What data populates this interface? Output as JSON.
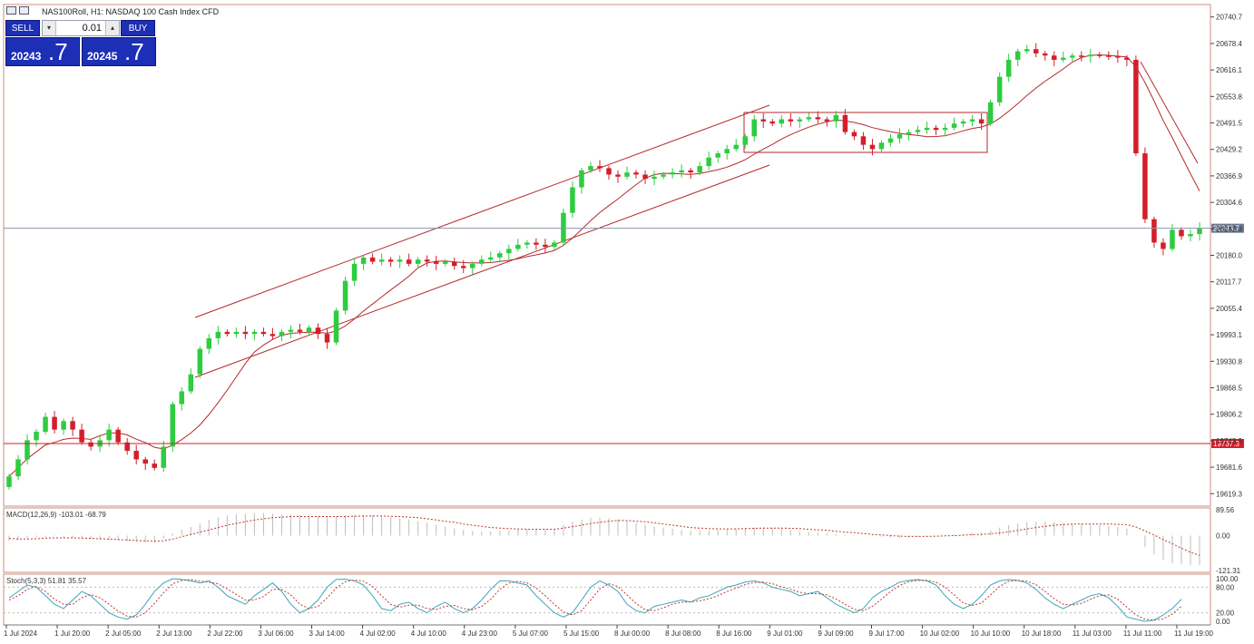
{
  "header": {
    "title": "NAS100Roll, H1:  NASDAQ 100 Cash Index CFD"
  },
  "trade_panel": {
    "sell_label": "SELL",
    "buy_label": "BUY",
    "lot": "0.01",
    "down_arrow": "▾",
    "up_arrow": "▴",
    "sell_price_main": "20243",
    "sell_price_big": ".7",
    "buy_price_main": "20245",
    "buy_price_big": ".7"
  },
  "colors": {
    "bull": "#2ecc40",
    "bear": "#d21f2b",
    "ma": "#b52a2a",
    "macd": "#bdbdbd",
    "signal": "#c0392b",
    "stoch_main": "#3aa6b9",
    "stoch_signal": "#c0392b",
    "price_tag": "#6b7a8f",
    "level_tag": "#d21f2b"
  },
  "chart_data": {
    "type": "candlestick",
    "y_ticks": [
      "20740.7",
      "20678.4",
      "20616.1",
      "20553.8",
      "20491.5",
      "20429.2",
      "20366.9",
      "20304.6",
      "20242.3",
      "20180.0",
      "20117.7",
      "20055.4",
      "19993.1",
      "19930.8",
      "19868.5",
      "19806.2",
      "19743.9",
      "19681.6",
      "19619.3"
    ],
    "ylim": [
      19590,
      20770
    ],
    "x_ticks": [
      "1 Jul 2024",
      "1 Jul 20:00",
      "2 Jul 05:00",
      "2 Jul 13:00",
      "2 Jul 22:00",
      "3 Jul 06:00",
      "3 Jul 14:00",
      "4 Jul 02:00",
      "4 Jul 10:00",
      "4 Jul 23:00",
      "5 Jul 07:00",
      "5 Jul 15:00",
      "8 Jul 00:00",
      "8 Jul 08:00",
      "8 Jul 16:00",
      "9 Jul 01:00",
      "9 Jul 09:00",
      "9 Jul 17:00",
      "10 Jul 02:00",
      "10 Jul 10:00",
      "10 Jul 18:00",
      "11 Jul 03:00",
      "11 Jul 11:00",
      "11 Jul 19:00"
    ],
    "current_price": 20243.7,
    "current_price_label": "20243.7",
    "level_price": 19737.3,
    "level_label": "19737.3",
    "closes": [
      19660,
      19700,
      19745,
      19765,
      19800,
      19770,
      19790,
      19770,
      19740,
      19730,
      19745,
      19770,
      19740,
      19720,
      19700,
      19690,
      19680,
      19730,
      19830,
      19860,
      19900,
      19960,
      19985,
      20000,
      19995,
      20000,
      19995,
      20000,
      19995,
      19990,
      20000,
      20005,
      20000,
      20010,
      19995,
      19975,
      20050,
      20120,
      20160,
      20175,
      20165,
      20170,
      20165,
      20170,
      20160,
      20170,
      20165,
      20160,
      20165,
      20155,
      20150,
      20160,
      20170,
      20175,
      20185,
      20195,
      20205,
      20210,
      20205,
      20200,
      20210,
      20280,
      20340,
      20380,
      20390,
      20385,
      20370,
      20365,
      20375,
      20370,
      20360,
      20365,
      20370,
      20375,
      20380,
      20375,
      20390,
      20410,
      20420,
      20430,
      20440,
      20460,
      20500,
      20495,
      20490,
      20500,
      20495,
      20500,
      20505,
      20500,
      20495,
      20510,
      20470,
      20460,
      20440,
      20430,
      20445,
      20455,
      20465,
      20470,
      20475,
      20480,
      20475,
      20480,
      20490,
      20495,
      20500,
      20490,
      20540,
      20600,
      20640,
      20660,
      20665,
      20655,
      20650,
      20640,
      20645,
      20650,
      20648,
      20652,
      20650,
      20649,
      20645,
      20640,
      20420,
      20265,
      20210,
      20195,
      20240,
      20225,
      20230,
      20243.7
    ],
    "macd_label": "MACD(12,26,9) -103.01 -68.79",
    "macd_ticks": [
      "89.56",
      "0.00",
      "-121.31"
    ],
    "macd_range": [
      -121.31,
      89.56
    ],
    "macd_hist": [
      -18,
      -14,
      -10,
      -6,
      -4,
      -2,
      -6,
      -8,
      -10,
      -12,
      -14,
      -16,
      -18,
      -20,
      -22,
      -24,
      -24,
      -10,
      8,
      20,
      30,
      42,
      55,
      64,
      70,
      74,
      76,
      78,
      78,
      76,
      74,
      72,
      70,
      70,
      68,
      64,
      66,
      70,
      72,
      72,
      70,
      68,
      64,
      60,
      56,
      50,
      44,
      38,
      32,
      26,
      20,
      16,
      14,
      14,
      16,
      18,
      20,
      22,
      22,
      22,
      24,
      36,
      48,
      56,
      62,
      62,
      60,
      56,
      50,
      44,
      38,
      32,
      28,
      24,
      20,
      18,
      18,
      18,
      20,
      22,
      24,
      26,
      28,
      28,
      26,
      24,
      20,
      16,
      12,
      10,
      8,
      6,
      4,
      2,
      0,
      -2,
      -4,
      -6,
      -8,
      -6,
      -4,
      -2,
      0,
      2,
      4,
      6,
      8,
      10,
      18,
      28,
      36,
      42,
      46,
      48,
      48,
      46,
      44,
      42,
      40,
      38,
      36,
      34,
      30,
      24,
      2,
      -40,
      -66,
      -84,
      -96,
      -100,
      -103,
      -103
    ],
    "macd_signal": [
      -10,
      -12,
      -12,
      -11,
      -9,
      -8,
      -8,
      -8,
      -9,
      -10,
      -11,
      -12,
      -14,
      -15,
      -17,
      -18,
      -19,
      -18,
      -12,
      -4,
      4,
      12,
      20,
      28,
      36,
      42,
      48,
      54,
      58,
      62,
      64,
      66,
      66,
      66,
      66,
      66,
      66,
      66,
      67,
      68,
      68,
      68,
      67,
      66,
      64,
      62,
      58,
      54,
      50,
      46,
      40,
      36,
      32,
      28,
      26,
      24,
      23,
      22,
      22,
      22,
      22,
      26,
      31,
      36,
      42,
      46,
      50,
      52,
      52,
      50,
      48,
      44,
      40,
      36,
      32,
      28,
      26,
      24,
      23,
      23,
      23,
      24,
      25,
      26,
      26,
      26,
      25,
      24,
      22,
      20,
      18,
      15,
      12,
      10,
      7,
      4,
      2,
      0,
      -2,
      -3,
      -3,
      -3,
      -2,
      -1,
      0,
      1,
      3,
      4,
      6,
      9,
      13,
      18,
      23,
      28,
      32,
      36,
      38,
      40,
      40,
      40,
      40,
      40,
      39,
      38,
      30,
      16,
      2,
      -14,
      -28,
      -44,
      -58,
      -68.79
    ],
    "stoch_label": "Stoch(5,3,3) 51.81 35.57",
    "stoch_ticks": [
      "100.00",
      "80.00",
      "20.00",
      "0.00"
    ],
    "stoch_main": [
      55,
      70,
      85,
      80,
      60,
      40,
      30,
      50,
      70,
      60,
      40,
      20,
      10,
      5,
      15,
      40,
      70,
      90,
      100,
      98,
      95,
      90,
      95,
      80,
      60,
      50,
      40,
      60,
      75,
      90,
      70,
      40,
      20,
      30,
      50,
      80,
      98,
      99,
      95,
      85,
      60,
      30,
      25,
      40,
      45,
      30,
      20,
      35,
      45,
      30,
      20,
      30,
      50,
      75,
      95,
      95,
      90,
      85,
      60,
      40,
      20,
      10,
      20,
      50,
      80,
      95,
      85,
      70,
      40,
      25,
      20,
      35,
      40,
      45,
      50,
      45,
      55,
      60,
      70,
      80,
      85,
      92,
      95,
      90,
      80,
      75,
      70,
      60,
      65,
      70,
      55,
      40,
      30,
      20,
      30,
      55,
      70,
      80,
      92,
      96,
      98,
      95,
      85,
      60,
      40,
      30,
      40,
      60,
      85,
      95,
      98,
      96,
      90,
      75,
      55,
      40,
      30,
      40,
      50,
      60,
      65,
      55,
      35,
      10,
      5,
      0,
      3,
      15,
      30,
      51.81
    ],
    "stoch_signal": [
      50,
      60,
      75,
      82,
      70,
      52,
      40,
      40,
      55,
      63,
      55,
      40,
      24,
      12,
      10,
      20,
      42,
      67,
      88,
      96,
      98,
      94,
      92,
      88,
      76,
      63,
      50,
      50,
      58,
      75,
      75,
      62,
      40,
      30,
      35,
      55,
      78,
      93,
      97,
      94,
      82,
      60,
      40,
      33,
      38,
      38,
      30,
      28,
      35,
      37,
      30,
      27,
      35,
      52,
      75,
      90,
      94,
      90,
      78,
      60,
      40,
      22,
      15,
      25,
      50,
      76,
      88,
      82,
      62,
      42,
      27,
      25,
      32,
      40,
      45,
      46,
      48,
      53,
      60,
      70,
      78,
      86,
      91,
      92,
      88,
      81,
      75,
      68,
      65,
      65,
      62,
      52,
      40,
      28,
      25,
      35,
      52,
      70,
      84,
      93,
      96,
      96,
      92,
      80,
      62,
      43,
      37,
      43,
      62,
      82,
      94,
      96,
      94,
      86,
      70,
      53,
      40,
      38,
      42,
      52,
      60,
      62,
      52,
      33,
      15,
      5,
      3,
      6,
      17,
      35.57
    ]
  }
}
